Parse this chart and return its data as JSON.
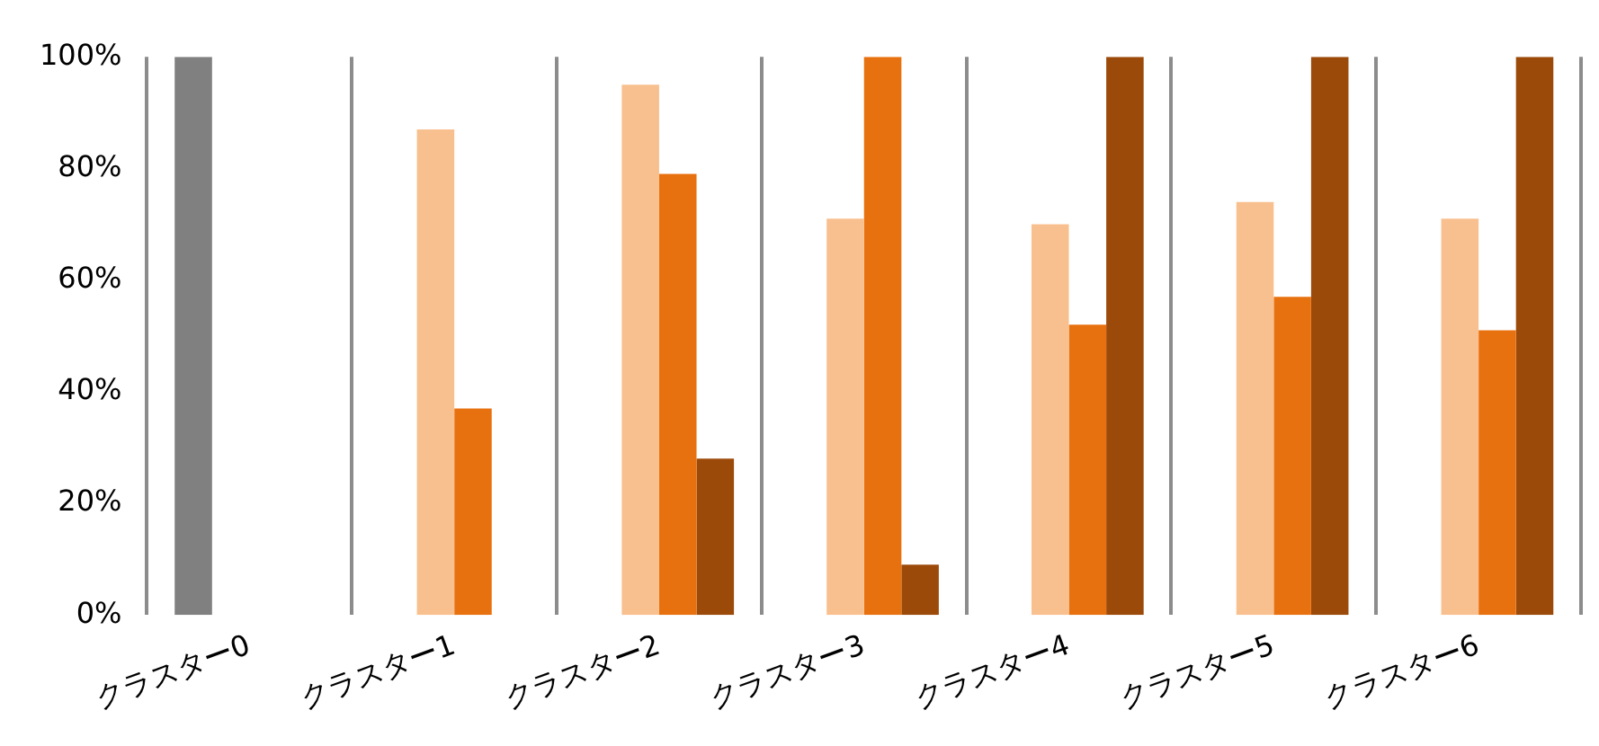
{
  "chart_data": {
    "type": "bar",
    "categories": [
      "クラスター0",
      "クラスター1",
      "クラスター2",
      "クラスター3",
      "クラスター4",
      "クラスター5",
      "クラスター6"
    ],
    "series": [
      {
        "color": "#808080",
        "values": [
          100,
          null,
          null,
          null,
          null,
          null,
          null
        ]
      },
      {
        "color": "#f9c08f",
        "values": [
          null,
          87,
          95,
          71,
          70,
          74,
          71
        ]
      },
      {
        "color": "#e8710f",
        "values": [
          null,
          37,
          79,
          100,
          52,
          57,
          51
        ]
      },
      {
        "color": "#9c4a0a",
        "values": [
          null,
          null,
          28,
          9,
          100,
          100,
          100
        ]
      }
    ],
    "ylim": [
      0,
      100
    ],
    "yticks": [
      {
        "value": 0,
        "label": "0%"
      },
      {
        "value": 20,
        "label": "20%"
      },
      {
        "value": 40,
        "label": "40%"
      },
      {
        "value": 60,
        "label": "60%"
      },
      {
        "value": 80,
        "label": "80%"
      },
      {
        "value": 100,
        "label": "100%"
      }
    ],
    "grid": "x",
    "legend": false
  }
}
